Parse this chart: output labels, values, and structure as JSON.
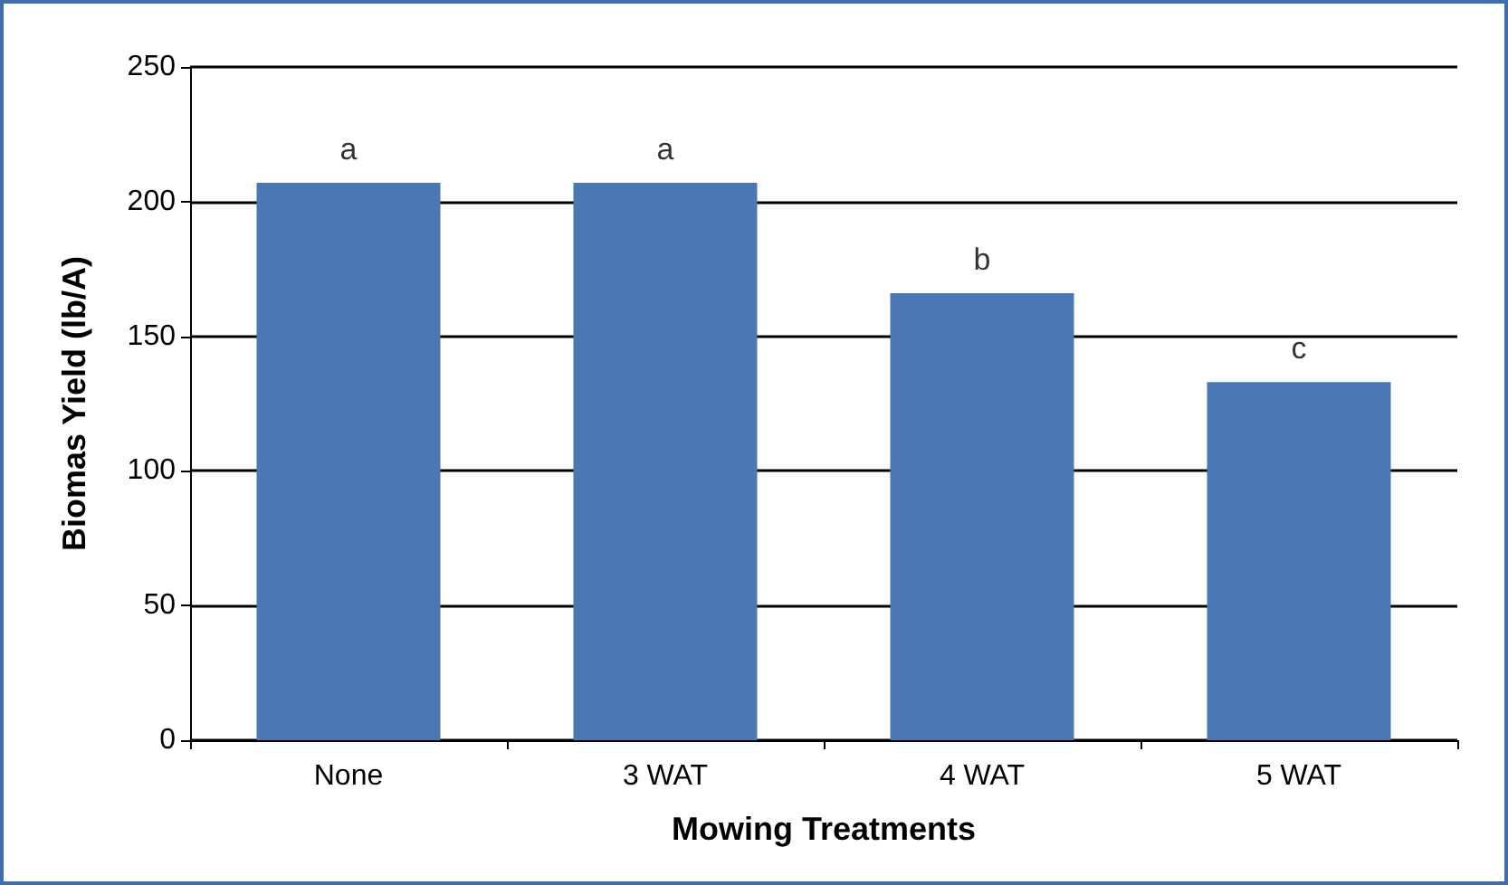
{
  "chart_data": {
    "type": "bar",
    "xlabel": "Mowing Treatments",
    "ylabel": "Biomas Yield (lb/A)",
    "categories": [
      "None",
      "3 WAT",
      "4 WAT",
      "5 WAT"
    ],
    "values": [
      207,
      207,
      166,
      133
    ],
    "color": "#4a78b5",
    "ylim": [
      0,
      250
    ],
    "yticks": [
      0,
      50,
      100,
      150,
      200,
      250
    ],
    "grid": "y",
    "annotations": [
      {
        "text": "a",
        "x": "None",
        "y": 207
      },
      {
        "text": "a",
        "x": "3 WAT",
        "y": 207
      },
      {
        "text": "b",
        "x": "4 WAT",
        "y": 166
      },
      {
        "text": "c",
        "x": "5 WAT",
        "y": 133
      }
    ]
  }
}
